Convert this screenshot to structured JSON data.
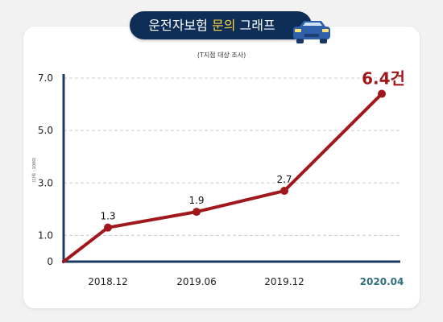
{
  "header": {
    "title_main": "운전자보험",
    "title_accent": "문의",
    "title_tail": "그래프",
    "subtitle": "(T지점 대상 조사)",
    "icon": "car-icon"
  },
  "colors": {
    "background": "#f2f2f2",
    "card": "#ffffff",
    "title_pill": "#0f2e57",
    "title_accent": "#ffd43b",
    "line": "#a0181c",
    "axis": "#1a3a66",
    "highlight_label": "#2e6e7e",
    "car": "#2f5fa8"
  },
  "chart_data": {
    "type": "line",
    "categories": [
      "",
      "2018.12",
      "2019.06",
      "2019.12",
      "2020.04"
    ],
    "values": [
      0,
      1.3,
      1.9,
      2.7,
      6.4
    ],
    "data_labels": [
      "",
      "1.3",
      "1.9",
      "2.7",
      "6.4건"
    ],
    "y_ticks": [
      "0",
      "1.0",
      "3.0",
      "5.0",
      "7.0"
    ],
    "ylabel": "(단위 : 1000)",
    "ylim": [
      0,
      7
    ],
    "grid": true,
    "highlight_index": 4
  }
}
